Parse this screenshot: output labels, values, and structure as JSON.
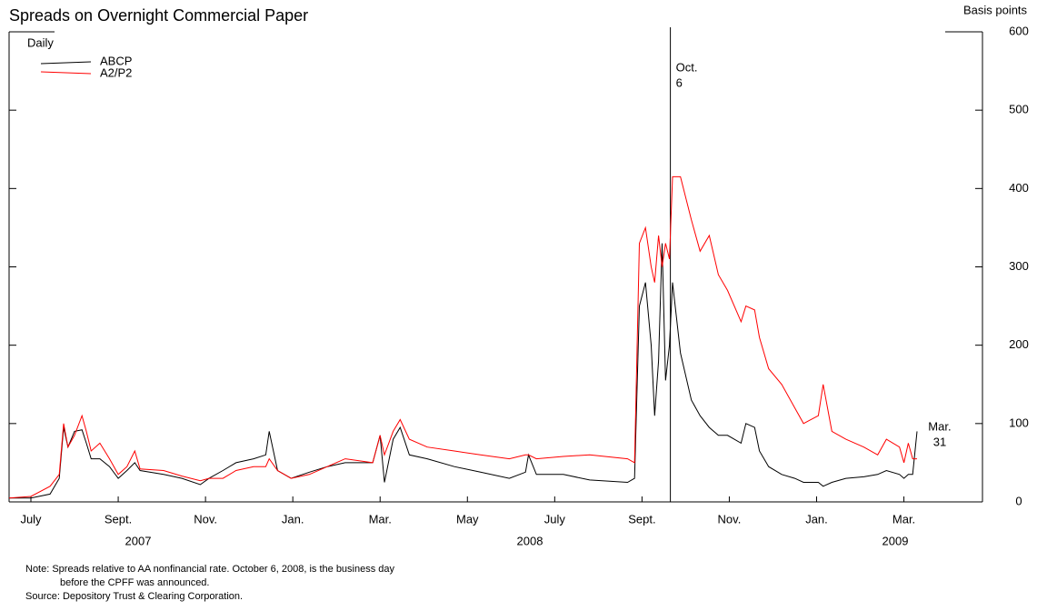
{
  "chart_data": {
    "type": "line",
    "title": "Spreads on Overnight Commercial Paper",
    "subtitle": "Daily",
    "y_axis_label": "Basis points",
    "x": [
      0,
      0.5,
      0.94,
      1.15,
      1.25,
      1.35,
      1.5,
      1.67,
      1.77,
      1.88,
      2.08,
      2.3,
      2.5,
      2.7,
      2.88,
      3.0,
      3.54,
      3.96,
      4.38,
      4.58,
      4.9,
      5.2,
      5.6,
      5.88,
      5.96,
      6.15,
      6.46,
      6.88,
      7.29,
      7.7,
      8.33,
      8.5,
      8.6,
      8.8,
      8.96,
      9.17,
      9.58,
      10.2,
      10.8,
      11.46,
      11.83,
      11.9,
      12.08,
      12.7,
      13.3,
      14.17,
      14.33,
      14.44,
      14.58,
      14.71,
      14.79,
      14.88,
      14.96,
      15.04,
      15.13,
      15.2,
      15.38,
      15.63,
      15.83,
      16.04,
      16.25,
      16.46,
      16.77,
      16.88,
      17.08,
      17.19,
      17.4,
      17.7,
      18.0,
      18.2,
      18.54,
      18.65,
      18.85,
      19.17,
      19.58,
      19.9,
      20.1,
      20.4,
      20.5,
      20.6,
      20.7,
      20.8
    ],
    "series": [
      {
        "name": "ABCP",
        "color": "#000000",
        "values": [
          5,
          5,
          10,
          30,
          95,
          70,
          90,
          92,
          75,
          55,
          55,
          45,
          30,
          40,
          50,
          40,
          35,
          30,
          22,
          30,
          40,
          50,
          55,
          60,
          90,
          40,
          30,
          38,
          45,
          50,
          50,
          85,
          25,
          80,
          95,
          60,
          55,
          45,
          38,
          30,
          38,
          60,
          35,
          35,
          28,
          25,
          30,
          250,
          280,
          200,
          110,
          180,
          330,
          155,
          200,
          280,
          190,
          130,
          110,
          95,
          85,
          85,
          75,
          100,
          95,
          65,
          45,
          35,
          30,
          25,
          25,
          20,
          25,
          30,
          32,
          35,
          40,
          35,
          30,
          35,
          35,
          90
        ]
      },
      {
        "name": "A2/P2",
        "color": "#ff0000",
        "values": [
          5,
          7,
          20,
          35,
          100,
          70,
          85,
          110,
          90,
          65,
          75,
          55,
          35,
          45,
          65,
          42,
          40,
          33,
          27,
          30,
          30,
          40,
          45,
          45,
          55,
          40,
          30,
          35,
          45,
          55,
          50,
          85,
          60,
          90,
          105,
          80,
          70,
          65,
          60,
          55,
          60,
          60,
          55,
          58,
          60,
          55,
          50,
          330,
          350,
          300,
          280,
          340,
          300,
          330,
          310,
          415,
          415,
          360,
          320,
          340,
          290,
          270,
          230,
          250,
          245,
          210,
          170,
          150,
          120,
          100,
          110,
          150,
          90,
          80,
          70,
          60,
          80,
          70,
          50,
          75,
          55,
          55
        ]
      }
    ],
    "xlim": [
      0,
      22.3
    ],
    "xticks": [
      {
        "value": 0.5,
        "label": "July"
      },
      {
        "value": 2.5,
        "label": "Sept."
      },
      {
        "value": 4.5,
        "label": "Nov."
      },
      {
        "value": 6.5,
        "label": "Jan."
      },
      {
        "value": 8.5,
        "label": "Mar."
      },
      {
        "value": 10.5,
        "label": "May"
      },
      {
        "value": 12.5,
        "label": "July"
      },
      {
        "value": 14.5,
        "label": "Sept."
      },
      {
        "value": 16.5,
        "label": "Nov."
      },
      {
        "value": 18.5,
        "label": "Jan."
      },
      {
        "value": 20.5,
        "label": "Mar."
      }
    ],
    "year_labels": [
      "2007",
      "2008",
      "2009"
    ],
    "ylim": [
      0,
      600
    ],
    "yticks": [
      0,
      100,
      200,
      300,
      400,
      500,
      600
    ],
    "legend": "upper left",
    "annotations": [
      {
        "lines": [
          "Oct.",
          "6"
        ],
        "x": 15.15
      },
      {
        "lines": [
          "Mar.",
          "31"
        ],
        "x": 20.8
      }
    ],
    "notes": [
      "Note: Spreads relative to AA nonfinancial rate. October 6, 2008, is the business day",
      "before the CPFF was announced.",
      "Source: Depository Trust & Clearing Corporation."
    ]
  }
}
